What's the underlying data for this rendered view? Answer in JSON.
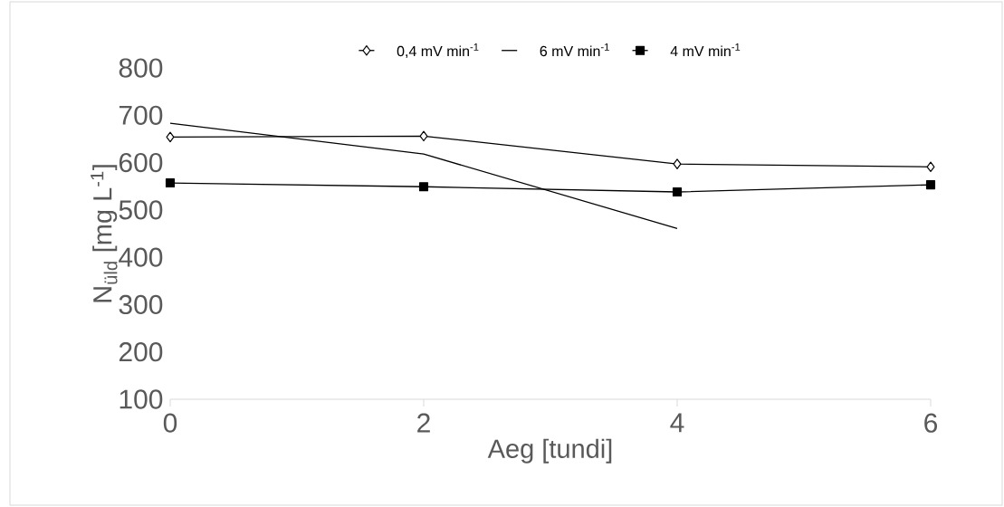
{
  "chart_data": {
    "type": "line",
    "xlabel": "Aeg [tundi]",
    "ylabel": "N$_{üld}$ [mg L$^{-1}$]",
    "x": [
      0,
      2,
      4,
      6
    ],
    "series": [
      {
        "name": "0,4 mV min$^{-1}$",
        "color": "#000000",
        "marker": "diamond",
        "values": [
          654,
          656,
          597,
          591
        ]
      },
      {
        "name": "6 mV min$^{-1}$",
        "color": "#000000",
        "marker": "none",
        "values": [
          683,
          618,
          461,
          null
        ]
      },
      {
        "name": "4 mV min$^{-1}$",
        "color": "#000000",
        "marker": "square",
        "values": [
          557,
          549,
          538,
          553
        ]
      }
    ],
    "xlim": [
      0,
      6
    ],
    "xticks": [
      0,
      2,
      4,
      6
    ],
    "ylim": [
      100,
      800
    ],
    "yticks": [
      100,
      200,
      300,
      400,
      500,
      600,
      700,
      800
    ],
    "grid": false,
    "legend": "top",
    "line_style": "solid"
  }
}
